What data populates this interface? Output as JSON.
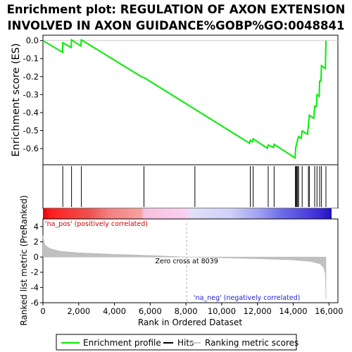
{
  "chart_data": {
    "type": "line",
    "title_line1": "Enrichment plot: REGULATION OF AXON EXTENSION",
    "title_line2": "INVOLVED IN AXON GUIDANCE%GOBP%GO:0048841",
    "ylabel_top": "Enrichment score (ES)",
    "ylabel_bottom": "Ranked list metric (PreRanked)",
    "xlabel": "Rank in Ordered Dataset",
    "xlim": [
      0,
      16500
    ],
    "xticks": [
      0,
      2000,
      4000,
      6000,
      8000,
      10000,
      12000,
      14000,
      16000
    ],
    "xtick_labels": [
      "0",
      "2,000",
      "4,000",
      "6,000",
      "8,000",
      "10,000",
      "12,000",
      "14,000",
      "16,000"
    ],
    "es_ylim": [
      -0.69,
      0.03
    ],
    "es_yticks": [
      0.0,
      -0.1,
      -0.2,
      -0.3,
      -0.4,
      -0.5,
      -0.6
    ],
    "es_ytick_labels": [
      "0.0",
      "-0.1",
      "-0.2",
      "-0.3",
      "-0.4",
      "-0.5",
      "-0.6"
    ],
    "metric_ylim": [
      -6,
      5
    ],
    "metric_yticks": [
      4,
      2,
      0,
      -2,
      -4,
      -6
    ],
    "metric_ytick_labels": [
      "4",
      "2",
      "0",
      "-2",
      "-4",
      "-6"
    ],
    "series": [
      {
        "name": "Enrichment profile",
        "color": "#00ee00",
        "points": [
          [
            0,
            0.0
          ],
          [
            1100,
            -0.065
          ],
          [
            1110,
            -0.012
          ],
          [
            1580,
            -0.038
          ],
          [
            1600,
            0.004
          ],
          [
            2120,
            -0.03
          ],
          [
            2150,
            0.004
          ],
          [
            5580,
            -0.205
          ],
          [
            5650,
            -0.205
          ],
          [
            11550,
            -0.57
          ],
          [
            11600,
            -0.553
          ],
          [
            11720,
            -0.562
          ],
          [
            11760,
            -0.546
          ],
          [
            12550,
            -0.598
          ],
          [
            12600,
            -0.58
          ],
          [
            12900,
            -0.594
          ],
          [
            12930,
            -0.576
          ],
          [
            14100,
            -0.652
          ],
          [
            14120,
            -0.62
          ],
          [
            14150,
            -0.59
          ],
          [
            14200,
            -0.57
          ],
          [
            14250,
            -0.55
          ],
          [
            14300,
            -0.533
          ],
          [
            14450,
            -0.543
          ],
          [
            14500,
            -0.502
          ],
          [
            14800,
            -0.52
          ],
          [
            14850,
            -0.47
          ],
          [
            14900,
            -0.415
          ],
          [
            15150,
            -0.432
          ],
          [
            15200,
            -0.365
          ],
          [
            15300,
            -0.365
          ],
          [
            15330,
            -0.3
          ],
          [
            15450,
            -0.31
          ],
          [
            15480,
            -0.225
          ],
          [
            15550,
            -0.225
          ],
          [
            15580,
            -0.14
          ],
          [
            15800,
            -0.155
          ],
          [
            15830,
            0.0
          ]
        ]
      }
    ],
    "hits": [
      1110,
      1600,
      2150,
      5650,
      8500,
      11600,
      11760,
      12600,
      12930,
      14120,
      14150,
      14200,
      14250,
      14300,
      14500,
      14850,
      14900,
      15200,
      15330,
      15480,
      15580,
      15830
    ],
    "metric_profile": [
      [
        0,
        2.8
      ],
      [
        100,
        1.6
      ],
      [
        400,
        1.1
      ],
      [
        1000,
        0.75
      ],
      [
        2000,
        0.55
      ],
      [
        4000,
        0.35
      ],
      [
        6000,
        0.2
      ],
      [
        8039,
        0.0
      ],
      [
        10000,
        -0.1
      ],
      [
        12000,
        -0.22
      ],
      [
        14000,
        -0.38
      ],
      [
        15000,
        -0.6
      ],
      [
        15500,
        -0.9
      ],
      [
        15700,
        -1.4
      ],
      [
        15800,
        -2.2
      ],
      [
        15830,
        -5.5
      ]
    ],
    "annotations": {
      "pos_label": "'na_pos' (positively correlated)",
      "neg_label": "'na_neg' (negatively correlated)",
      "zero_cross": "Zero cross at 8039",
      "zero_cross_rank": 8039
    },
    "legend": {
      "placement": "bottom",
      "items": [
        {
          "label": "Enrichment profile",
          "color": "#00ee00"
        },
        {
          "label": "Hits",
          "color": "#000000"
        },
        {
          "label": "Ranking metric scores",
          "color": "#c8c8c8"
        }
      ]
    }
  }
}
